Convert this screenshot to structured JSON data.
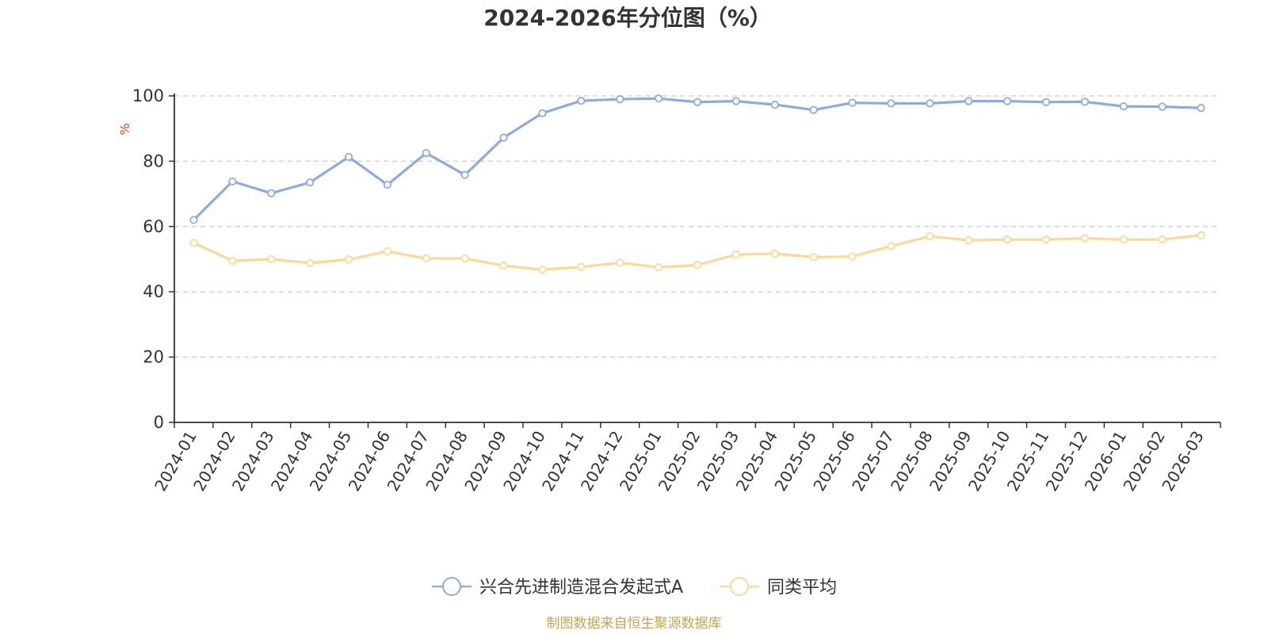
{
  "chart_data": {
    "type": "line",
    "title": "2024-2026年分位图（%）",
    "ylabel": "%",
    "xlabel": "",
    "ylim": [
      0,
      100
    ],
    "yticks": [
      0,
      20,
      40,
      60,
      80,
      100
    ],
    "grid": "horizontal-dashed",
    "legend_position": "bottom-center",
    "categories": [
      "2024-01",
      "2024-02",
      "2024-03",
      "2024-04",
      "2024-05",
      "2024-06",
      "2024-07",
      "2024-08",
      "2024-09",
      "2024-10",
      "2024-11",
      "2024-12",
      "2025-01",
      "2025-02",
      "2025-03",
      "2025-04",
      "2025-05",
      "2025-06",
      "2025-07",
      "2025-08",
      "2025-09",
      "2025-10",
      "2025-11",
      "2025-12",
      "2026-01",
      "2026-02",
      "2026-03"
    ],
    "series": [
      {
        "name": "兴合先进制造混合发起式A",
        "color": "#8eacdb",
        "values": [
          62.0,
          73.8,
          70.2,
          73.5,
          81.3,
          72.8,
          82.5,
          75.8,
          87.2,
          94.7,
          98.5,
          99.0,
          99.2,
          98.1,
          98.4,
          97.3,
          95.7,
          97.9,
          97.7,
          97.7,
          98.4,
          98.4,
          98.1,
          98.2,
          96.8,
          96.7,
          96.3
        ]
      },
      {
        "name": "同类平均",
        "color": "#fad99a",
        "values": [
          55.0,
          49.5,
          50.0,
          48.8,
          49.9,
          52.4,
          50.2,
          50.2,
          48.0,
          46.8,
          47.6,
          48.9,
          47.5,
          48.2,
          51.4,
          51.7,
          50.6,
          50.8,
          54.0,
          57.0,
          55.8,
          56.0,
          56.0,
          56.4,
          56.0,
          56.0,
          57.3
        ]
      }
    ]
  },
  "source": {
    "text": "制图数据来自恒生聚源数据库",
    "color": "#c9a255"
  },
  "ylabel_color": "#e8462a"
}
